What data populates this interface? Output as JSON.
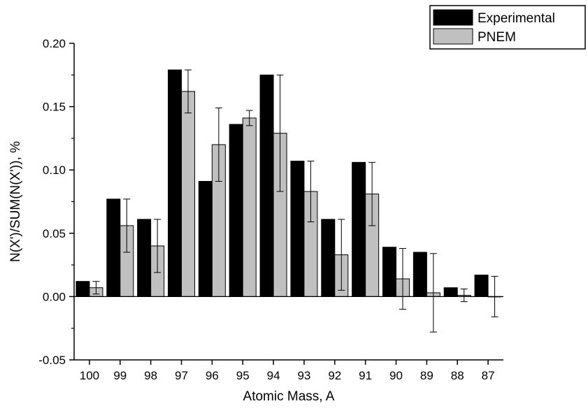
{
  "chart_data": {
    "type": "bar",
    "xlabel": "Atomic Mass, A",
    "ylabel": "N(X')/SUM(N(X')), %",
    "categories": [
      "100",
      "99",
      "98",
      "97",
      "96",
      "95",
      "94",
      "93",
      "92",
      "91",
      "90",
      "89",
      "88",
      "87"
    ],
    "ylim": [
      -0.05,
      0.2
    ],
    "yticks": [
      "-0.05",
      "0.00",
      "0.05",
      "0.10",
      "0.15",
      "0.20"
    ],
    "legend_position": "top-right",
    "series": [
      {
        "name": "Experimental",
        "color": "#000000",
        "values": [
          0.012,
          0.077,
          0.061,
          0.179,
          0.091,
          0.136,
          0.175,
          0.107,
          0.061,
          0.106,
          0.039,
          0.035,
          0.007,
          0.017
        ],
        "errors": [
          0,
          0,
          0,
          0,
          0,
          0,
          0,
          0,
          0,
          0,
          0,
          0,
          0,
          0
        ]
      },
      {
        "name": "PNEM",
        "color": "#c0c0c0",
        "values": [
          0.007,
          0.056,
          0.04,
          0.162,
          0.12,
          0.141,
          0.129,
          0.083,
          0.033,
          0.081,
          0.014,
          0.003,
          0.001,
          0.0
        ],
        "errors": [
          0.005,
          0.021,
          0.021,
          0.017,
          0.029,
          0.006,
          0.046,
          0.024,
          0.028,
          0.025,
          0.024,
          0.031,
          0.005,
          0.016
        ]
      }
    ]
  }
}
